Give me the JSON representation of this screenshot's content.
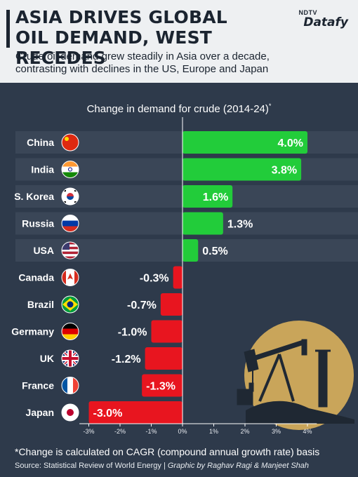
{
  "header": {
    "title_line1": "ASIA DRIVES GLOBAL",
    "title_line2": "OIL DEMAND, WEST RECEDES",
    "subtitle_line1": "Crude oil demand grew steadily in Asia over a decade,",
    "subtitle_line2": "contrasting with declines in the US, Europe and Japan",
    "brand_top": "NDTV",
    "brand": "Datafy"
  },
  "colors": {
    "background": "#2e3a4b",
    "header_bg": "#eef0f2",
    "positive": "#22cc3a",
    "negative": "#e8151f",
    "band": "#3a4657",
    "oil_circle": "#c9a55a"
  },
  "chart_data": {
    "type": "bar",
    "orientation": "horizontal",
    "title": "Change in demand for crude (2014-24)",
    "title_marker": "*",
    "categories": [
      "China",
      "India",
      "S. Korea",
      "Russia",
      "USA",
      "Canada",
      "Brazil",
      "Germany",
      "UK",
      "France",
      "Japan"
    ],
    "values": [
      4.0,
      3.8,
      1.6,
      1.3,
      0.5,
      -0.3,
      -0.7,
      -1.0,
      -1.2,
      -1.3,
      -3.0
    ],
    "value_labels": [
      "4.0%",
      "3.8%",
      "1.6%",
      "1.3%",
      "0.5%",
      "-0.3%",
      "-0.7%",
      "-1.0%",
      "-1.2%",
      "-1.3%",
      "-3.0%"
    ],
    "flags": [
      "china-flag-icon",
      "india-flag-icon",
      "south-korea-flag-icon",
      "russia-flag-icon",
      "usa-flag-icon",
      "canada-flag-icon",
      "brazil-flag-icon",
      "germany-flag-icon",
      "uk-flag-icon",
      "france-flag-icon",
      "japan-flag-icon"
    ],
    "xlim": [
      -3.3,
      4.3
    ],
    "x_ticks": [
      -3,
      -2,
      -1,
      0,
      1,
      2,
      3,
      4
    ],
    "x_tick_labels": [
      "-3%",
      "-2%",
      "-1%",
      "0%",
      "1%",
      "2%",
      "3%",
      "4%"
    ],
    "grid": false
  },
  "footer": {
    "footnote": "*Change is calculated on CAGR (compound annual growth rate) basis",
    "source": "Source: Statistical Review of World Energy | ",
    "credit": "Graphic by Raghav Ragi & Manjeet Shah"
  }
}
